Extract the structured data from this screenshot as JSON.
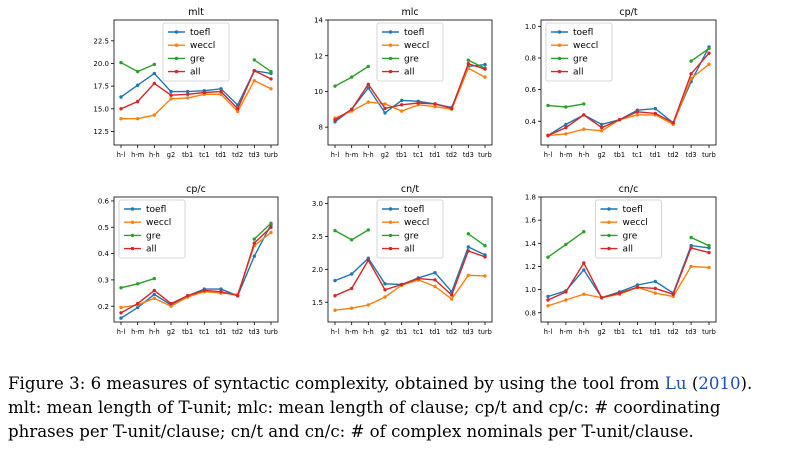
{
  "colors": {
    "toefl": "#1f77b4",
    "weccl": "#ff7f0e",
    "gre": "#2ca02c",
    "all": "#d62728"
  },
  "chart_data": [
    {
      "type": "line",
      "title": "mlt",
      "categories": [
        "h-l",
        "h-m",
        "h-h",
        "g2",
        "tb1",
        "tc1",
        "td1",
        "td2",
        "td3",
        "turb"
      ],
      "yticks": [
        12.5,
        15.0,
        17.5,
        20.0,
        22.5
      ],
      "ytick_labels": [
        "12.5",
        "15.0",
        "17.5",
        "20.0",
        "22.5"
      ],
      "ylim": [
        11.0,
        24.8
      ],
      "legend": "top-center",
      "series": [
        {
          "name": "toefl",
          "values": [
            16.3,
            17.6,
            18.9,
            16.9,
            16.9,
            17.0,
            17.2,
            15.4,
            19.2,
            18.9
          ]
        },
        {
          "name": "weccl",
          "values": [
            13.9,
            13.9,
            14.3,
            16.1,
            16.2,
            16.6,
            16.6,
            14.7,
            18.1,
            17.2
          ]
        },
        {
          "name": "gre",
          "values": [
            20.1,
            19.1,
            19.9,
            null,
            null,
            null,
            null,
            null,
            20.4,
            19.1
          ]
        },
        {
          "name": "all",
          "values": [
            15.0,
            15.8,
            17.8,
            16.5,
            16.6,
            16.8,
            16.9,
            15.0,
            19.2,
            18.3
          ]
        }
      ]
    },
    {
      "type": "line",
      "title": "mlc",
      "categories": [
        "h-l",
        "h-m",
        "h-h",
        "g2",
        "tb1",
        "tc1",
        "td1",
        "td2",
        "td3",
        "turb"
      ],
      "yticks": [
        8,
        10,
        12,
        14
      ],
      "ytick_labels": [
        "8",
        "10",
        "12",
        "14"
      ],
      "ylim": [
        7.0,
        14.0
      ],
      "legend": "top-center",
      "series": [
        {
          "name": "toefl",
          "values": [
            8.3,
            9.0,
            10.2,
            8.8,
            9.5,
            9.45,
            9.3,
            9.1,
            11.4,
            11.5
          ]
        },
        {
          "name": "weccl",
          "values": [
            8.5,
            8.9,
            9.4,
            9.3,
            8.9,
            9.25,
            9.15,
            9.0,
            11.3,
            10.8
          ]
        },
        {
          "name": "gre",
          "values": [
            10.3,
            10.8,
            11.4,
            null,
            null,
            null,
            null,
            null,
            11.75,
            11.3
          ]
        },
        {
          "name": "all",
          "values": [
            8.4,
            9.0,
            10.4,
            9.05,
            9.25,
            9.35,
            9.3,
            9.05,
            11.55,
            11.25
          ]
        }
      ]
    },
    {
      "type": "line",
      "title": "cp/t",
      "categories": [
        "h-l",
        "h-m",
        "h-h",
        "g2",
        "tb1",
        "tc1",
        "td1",
        "td2",
        "td3",
        "turb"
      ],
      "yticks": [
        0.4,
        0.6,
        0.8,
        1.0
      ],
      "ytick_labels": [
        "0.4",
        "0.6",
        "0.8",
        "1.0"
      ],
      "ylim": [
        0.25,
        1.04
      ],
      "legend": "top-left",
      "series": [
        {
          "name": "toefl",
          "values": [
            0.31,
            0.38,
            0.44,
            0.38,
            0.41,
            0.47,
            0.48,
            0.39,
            0.65,
            0.87
          ]
        },
        {
          "name": "weccl",
          "values": [
            0.31,
            0.32,
            0.35,
            0.34,
            0.41,
            0.44,
            0.44,
            0.38,
            0.67,
            0.76
          ]
        },
        {
          "name": "gre",
          "values": [
            0.5,
            0.49,
            0.51,
            null,
            null,
            null,
            null,
            null,
            0.78,
            0.86
          ]
        },
        {
          "name": "all",
          "values": [
            0.31,
            0.36,
            0.44,
            0.36,
            0.41,
            0.46,
            0.45,
            0.39,
            0.7,
            0.83
          ]
        }
      ]
    },
    {
      "type": "line",
      "title": "cp/c",
      "categories": [
        "h-l",
        "h-m",
        "h-h",
        "g2",
        "tb1",
        "tc1",
        "td1",
        "td2",
        "td3",
        "turb"
      ],
      "yticks": [
        0.2,
        0.3,
        0.4,
        0.5,
        0.6
      ],
      "ytick_labels": [
        "0.2",
        "0.3",
        "0.4",
        "0.5",
        "0.6"
      ],
      "ylim": [
        0.14,
        0.615
      ],
      "legend": "top-left",
      "series": [
        {
          "name": "toefl",
          "values": [
            0.155,
            0.195,
            0.245,
            0.205,
            0.24,
            0.265,
            0.265,
            0.24,
            0.39,
            0.51
          ]
        },
        {
          "name": "weccl",
          "values": [
            0.195,
            0.205,
            0.23,
            0.2,
            0.235,
            0.255,
            0.25,
            0.245,
            0.43,
            0.48
          ]
        },
        {
          "name": "gre",
          "values": [
            0.27,
            0.285,
            0.305,
            null,
            null,
            null,
            null,
            null,
            0.455,
            0.515
          ]
        },
        {
          "name": "all",
          "values": [
            0.175,
            0.21,
            0.26,
            0.21,
            0.24,
            0.26,
            0.255,
            0.24,
            0.44,
            0.5
          ]
        }
      ]
    },
    {
      "type": "line",
      "title": "cn/t",
      "categories": [
        "h-l",
        "h-m",
        "h-h",
        "g2",
        "tb1",
        "tc1",
        "td1",
        "td2",
        "td3",
        "turb"
      ],
      "yticks": [
        1.5,
        2.0,
        2.5,
        3.0
      ],
      "ytick_labels": [
        "1.5",
        "2.0",
        "2.5",
        "3.0"
      ],
      "ylim": [
        1.2,
        3.1
      ],
      "legend": "top-center",
      "series": [
        {
          "name": "toefl",
          "values": [
            1.83,
            1.93,
            2.17,
            1.78,
            1.77,
            1.87,
            1.95,
            1.66,
            2.34,
            2.22
          ]
        },
        {
          "name": "weccl",
          "values": [
            1.38,
            1.41,
            1.46,
            1.58,
            1.76,
            1.84,
            1.74,
            1.55,
            1.91,
            1.9
          ]
        },
        {
          "name": "gre",
          "values": [
            2.59,
            2.45,
            2.6,
            null,
            null,
            null,
            null,
            null,
            2.54,
            2.36
          ]
        },
        {
          "name": "all",
          "values": [
            1.6,
            1.71,
            2.14,
            1.69,
            1.77,
            1.86,
            1.84,
            1.61,
            2.28,
            2.19
          ]
        }
      ]
    },
    {
      "type": "line",
      "title": "cn/c",
      "categories": [
        "h-l",
        "h-m",
        "h-h",
        "g2",
        "tb1",
        "tc1",
        "td1",
        "td2",
        "td3",
        "turb"
      ],
      "yticks": [
        0.8,
        1.0,
        1.2,
        1.4,
        1.6,
        1.8
      ],
      "ytick_labels": [
        "0.8",
        "1.0",
        "1.2",
        "1.4",
        "1.6",
        "1.8"
      ],
      "ylim": [
        0.72,
        1.8
      ],
      "legend": "top-center",
      "series": [
        {
          "name": "toefl",
          "values": [
            0.94,
            0.99,
            1.17,
            0.93,
            0.98,
            1.04,
            1.07,
            0.97,
            1.38,
            1.36
          ]
        },
        {
          "name": "weccl",
          "values": [
            0.86,
            0.91,
            0.96,
            0.93,
            0.96,
            1.02,
            0.97,
            0.94,
            1.2,
            1.19
          ]
        },
        {
          "name": "gre",
          "values": [
            1.28,
            1.39,
            1.5,
            null,
            null,
            null,
            null,
            null,
            1.45,
            1.38
          ]
        },
        {
          "name": "all",
          "values": [
            0.91,
            0.98,
            1.23,
            0.93,
            0.97,
            1.02,
            1.01,
            0.96,
            1.36,
            1.32
          ]
        }
      ]
    }
  ],
  "caption": {
    "part1": "Figure 3:  6 measures of syntactic complexity, obtained by using the tool from ",
    "cite_author": "Lu",
    "cite_open": " (",
    "cite_year": "2010",
    "cite_close": ").",
    "part2": "mlt:  mean length of T-unit;  mlc:  mean length of clause;  cp/t and cp/c:  # coordinating phrases per T-unit/clause; cn/t and cn/c: # of complex nominals per T-unit/clause."
  }
}
